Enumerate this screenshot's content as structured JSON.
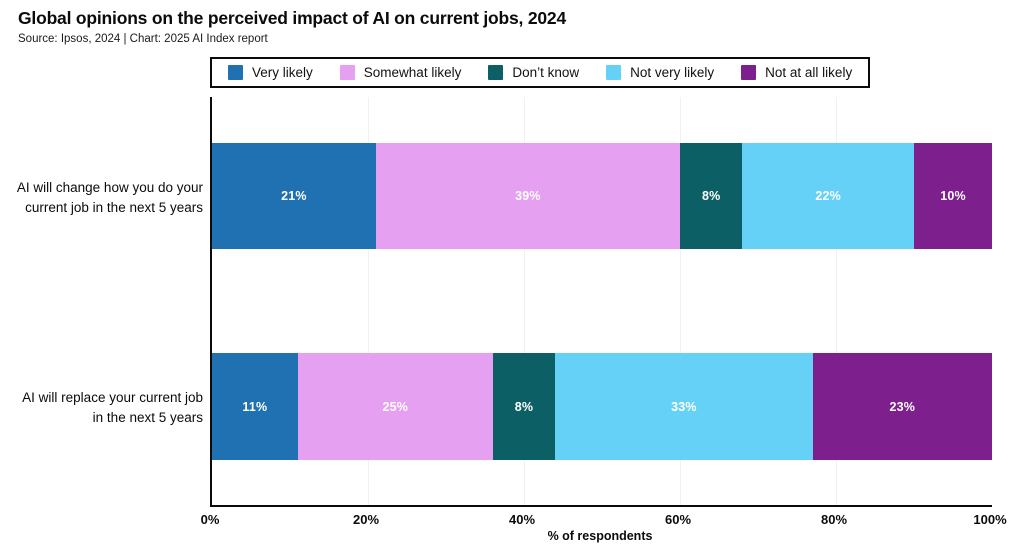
{
  "header": {
    "title": "Global opinions on the perceived impact of AI on current jobs, 2024",
    "source": "Source: Ipsos, 2024 | Chart: 2025 AI Index report"
  },
  "chart_data": {
    "type": "bar",
    "orientation": "horizontal",
    "stacked": true,
    "title": "Global opinions on the perceived impact of AI on current jobs, 2024",
    "categories": [
      "AI will change how you do your current job in the next 5 years",
      "AI will replace your current job in the next 5 years"
    ],
    "category_lines": [
      [
        "AI will change how you do your",
        "current job in the next 5 years"
      ],
      [
        "AI will replace your current job",
        "in the next 5 years"
      ]
    ],
    "series": [
      {
        "name": "Very likely",
        "color": "#2071b2",
        "values": [
          21,
          11
        ]
      },
      {
        "name": "Somewhat likely",
        "color": "#e5a0f2",
        "values": [
          39,
          25
        ]
      },
      {
        "name": "Don’t know",
        "color": "#0d5f66",
        "values": [
          8,
          8
        ]
      },
      {
        "name": "Not very likely",
        "color": "#65d1f7",
        "values": [
          22,
          33
        ]
      },
      {
        "name": "Not at all likely",
        "color": "#7e1f8e",
        "values": [
          10,
          23
        ]
      }
    ],
    "bar_label_suffix": "%",
    "xlabel": "% of respondents",
    "xticks": [
      "0%",
      "20%",
      "40%",
      "60%",
      "80%",
      "100%"
    ],
    "xtick_values": [
      0,
      20,
      40,
      60,
      80,
      100
    ],
    "grid_values": [
      20,
      40,
      60,
      80
    ],
    "xlim": [
      0,
      100
    ],
    "grid": true,
    "legend_position": "top"
  }
}
